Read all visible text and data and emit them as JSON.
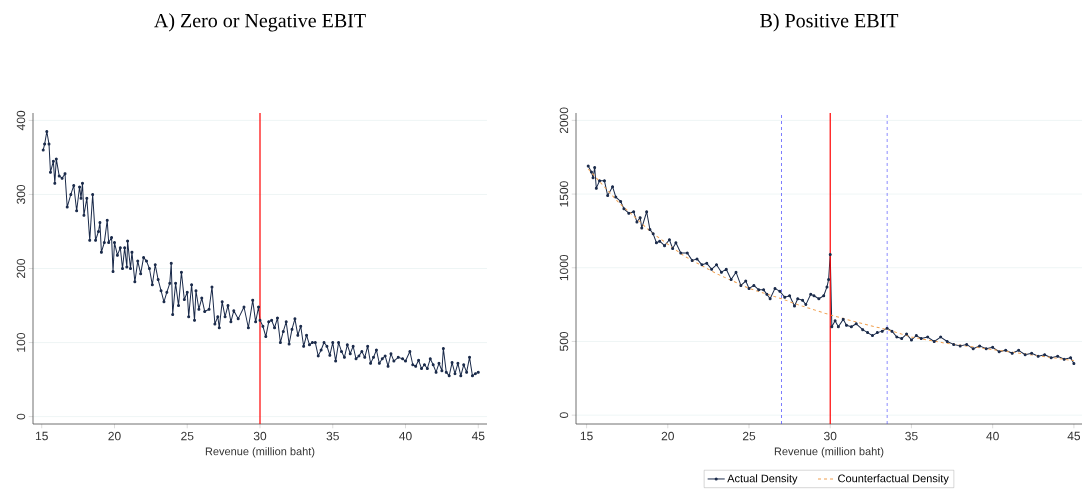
{
  "chart_data": [
    {
      "type": "line",
      "title": "A)  Zero or Negative EBIT",
      "xlabel": "Revenue (million baht)",
      "xlim": [
        14.4,
        45.6
      ],
      "ylim": [
        -10,
        410
      ],
      "xticks": [
        15,
        20,
        25,
        30,
        35,
        40,
        45
      ],
      "yticks": [
        0,
        100,
        200,
        300,
        400
      ],
      "grid": "y",
      "legend": false,
      "series": [
        {
          "color": "#1a2a4a",
          "marker": "circle",
          "line_style": "solid",
          "x": [
            15.1,
            15.2,
            15.35,
            15.5,
            15.6,
            15.8,
            15.9,
            16.0,
            16.2,
            16.4,
            16.6,
            16.75,
            17.0,
            17.2,
            17.4,
            17.6,
            17.7,
            17.8,
            17.9,
            18.1,
            18.3,
            18.5,
            18.7,
            18.9,
            19.0,
            19.1,
            19.3,
            19.5,
            19.6,
            19.8,
            19.9,
            20.0,
            20.2,
            20.4,
            20.55,
            20.7,
            20.85,
            20.9,
            21.1,
            21.2,
            21.4,
            21.6,
            21.8,
            22.0,
            22.2,
            22.4,
            22.6,
            22.8,
            23.0,
            23.2,
            23.4,
            23.6,
            23.8,
            23.9,
            24.0,
            24.2,
            24.4,
            24.6,
            24.8,
            25.0,
            25.1,
            25.3,
            25.5,
            25.6,
            25.8,
            26.0,
            26.2,
            26.5,
            26.7,
            26.9,
            27.1,
            27.2,
            27.4,
            27.6,
            27.8,
            28.0,
            28.2,
            28.5,
            28.9,
            29.2,
            29.5,
            29.7,
            29.9,
            30.0,
            30.2,
            30.4,
            30.6,
            30.8,
            31.0,
            31.2,
            31.4,
            31.6,
            31.8,
            32.0,
            32.2,
            32.4,
            32.6,
            32.8,
            33.0,
            33.2,
            33.4,
            33.6,
            33.8,
            34.0,
            34.2,
            34.4,
            34.6,
            34.8,
            35.0,
            35.2,
            35.4,
            35.6,
            35.8,
            36.0,
            36.2,
            36.4,
            36.6,
            36.8,
            37.0,
            37.2,
            37.4,
            37.6,
            37.8,
            38.0,
            38.2,
            38.4,
            38.6,
            38.8,
            39.0,
            39.2,
            39.5,
            39.8,
            40.0,
            40.3,
            40.5,
            40.7,
            40.9,
            41.1,
            41.3,
            41.5,
            41.7,
            41.9,
            42.1,
            42.3,
            42.5,
            42.6,
            42.8,
            43.0,
            43.2,
            43.4,
            43.6,
            43.8,
            44.0,
            44.2,
            44.4,
            44.6,
            44.8,
            45.0
          ],
          "values": [
            360,
            368,
            385,
            368,
            330,
            345,
            315,
            348,
            325,
            322,
            328,
            283,
            300,
            312,
            278,
            310,
            295,
            315,
            272,
            295,
            238,
            300,
            238,
            250,
            262,
            222,
            235,
            265,
            235,
            242,
            196,
            235,
            218,
            228,
            200,
            228,
            202,
            237,
            200,
            222,
            182,
            210,
            193,
            215,
            210,
            200,
            178,
            205,
            185,
            170,
            155,
            168,
            180,
            207,
            138,
            180,
            150,
            195,
            158,
            168,
            135,
            178,
            130,
            170,
            145,
            160,
            142,
            145,
            175,
            125,
            135,
            120,
            155,
            135,
            150,
            128,
            143,
            132,
            148,
            120,
            157,
            128,
            148,
            130,
            122,
            108,
            128,
            130,
            120,
            133,
            100,
            115,
            128,
            98,
            118,
            132,
            110,
            122,
            95,
            110,
            97,
            100,
            100,
            82,
            90,
            100,
            95,
            83,
            100,
            75,
            100,
            88,
            80,
            97,
            85,
            95,
            78,
            82,
            88,
            80,
            95,
            72,
            80,
            90,
            72,
            78,
            82,
            68,
            85,
            75,
            80,
            78,
            75,
            88,
            70,
            68,
            76,
            65,
            70,
            65,
            78,
            70,
            60,
            72,
            62,
            92,
            60,
            55,
            73,
            58,
            72,
            55,
            70,
            60,
            80,
            55,
            58,
            60
          ]
        }
      ],
      "ref_lines": [
        {
          "axis": "x",
          "value": 30,
          "color": "#ff0000",
          "line_style": "solid"
        }
      ]
    },
    {
      "type": "line",
      "title": "B)  Positive EBIT",
      "xlabel": "Revenue (million baht)",
      "xlim": [
        14.35,
        45.5
      ],
      "ylim": [
        -60,
        2050
      ],
      "xticks": [
        15,
        20,
        25,
        30,
        35,
        40,
        45
      ],
      "yticks": [
        0,
        500,
        1000,
        1500,
        2000
      ],
      "grid": "y",
      "legend": "bottom",
      "series": [
        {
          "name": "Actual Density",
          "color": "#1a2a4a",
          "marker": "circle",
          "line_style": "solid",
          "x": [
            15.1,
            15.3,
            15.4,
            15.5,
            15.6,
            15.8,
            16.1,
            16.3,
            16.6,
            16.8,
            17.1,
            17.3,
            17.6,
            17.9,
            18.1,
            18.3,
            18.4,
            18.7,
            18.9,
            19.1,
            19.3,
            19.5,
            19.8,
            20.1,
            20.3,
            20.5,
            20.8,
            21.2,
            21.5,
            21.8,
            22.1,
            22.4,
            22.7,
            23.0,
            23.3,
            23.6,
            23.9,
            24.2,
            24.5,
            24.8,
            25.0,
            25.3,
            25.6,
            25.9,
            26.1,
            26.3,
            26.6,
            26.9,
            27.2,
            27.5,
            27.8,
            28.0,
            28.3,
            28.5,
            28.8,
            29.0,
            29.3,
            29.6,
            29.8,
            29.9,
            30.0,
            30.1,
            30.3,
            30.5,
            30.8,
            31.0,
            31.3,
            31.6,
            32.0,
            32.3,
            32.6,
            32.9,
            33.2,
            33.5,
            33.8,
            34.1,
            34.4,
            34.7,
            35.0,
            35.3,
            35.6,
            36.0,
            36.4,
            36.8,
            37.2,
            37.6,
            38.0,
            38.4,
            38.8,
            39.2,
            39.6,
            40.0,
            40.4,
            40.8,
            41.2,
            41.6,
            42.0,
            42.4,
            42.8,
            43.2,
            43.6,
            44.0,
            44.4,
            44.8,
            45.0
          ],
          "values": [
            1690,
            1650,
            1610,
            1680,
            1540,
            1590,
            1590,
            1490,
            1550,
            1480,
            1450,
            1400,
            1370,
            1380,
            1310,
            1340,
            1270,
            1380,
            1260,
            1230,
            1170,
            1180,
            1150,
            1190,
            1130,
            1170,
            1100,
            1100,
            1050,
            1060,
            1020,
            1030,
            990,
            1020,
            970,
            990,
            920,
            970,
            880,
            910,
            860,
            880,
            850,
            850,
            820,
            790,
            860,
            840,
            800,
            810,
            740,
            790,
            780,
            750,
            820,
            810,
            790,
            810,
            870,
            920,
            1090,
            600,
            640,
            600,
            650,
            610,
            600,
            620,
            580,
            560,
            540,
            560,
            570,
            590,
            570,
            530,
            520,
            550,
            510,
            540,
            520,
            530,
            500,
            530,
            500,
            480,
            470,
            480,
            450,
            470,
            450,
            460,
            430,
            440,
            420,
            440,
            410,
            420,
            400,
            410,
            390,
            400,
            380,
            390,
            350
          ]
        },
        {
          "name": "Counterfactual Density",
          "color": "#f0a050",
          "marker": "none",
          "line_style": "dashed",
          "x": [
            15.1,
            17,
            19,
            21,
            23,
            25,
            27,
            28,
            30,
            32,
            33.5,
            35,
            37,
            39,
            41,
            43,
            45
          ],
          "values": [
            1670,
            1440,
            1240,
            1080,
            960,
            860,
            790,
            750,
            680,
            620,
            580,
            530,
            490,
            460,
            430,
            400,
            370
          ]
        }
      ],
      "ref_lines": [
        {
          "axis": "x",
          "value": 27,
          "color": "#4040ff",
          "line_style": "dashed"
        },
        {
          "axis": "x",
          "value": 30,
          "color": "#ff0000",
          "line_style": "solid"
        },
        {
          "axis": "x",
          "value": 33.5,
          "color": "#4040ff",
          "line_style": "dashed"
        }
      ]
    }
  ]
}
